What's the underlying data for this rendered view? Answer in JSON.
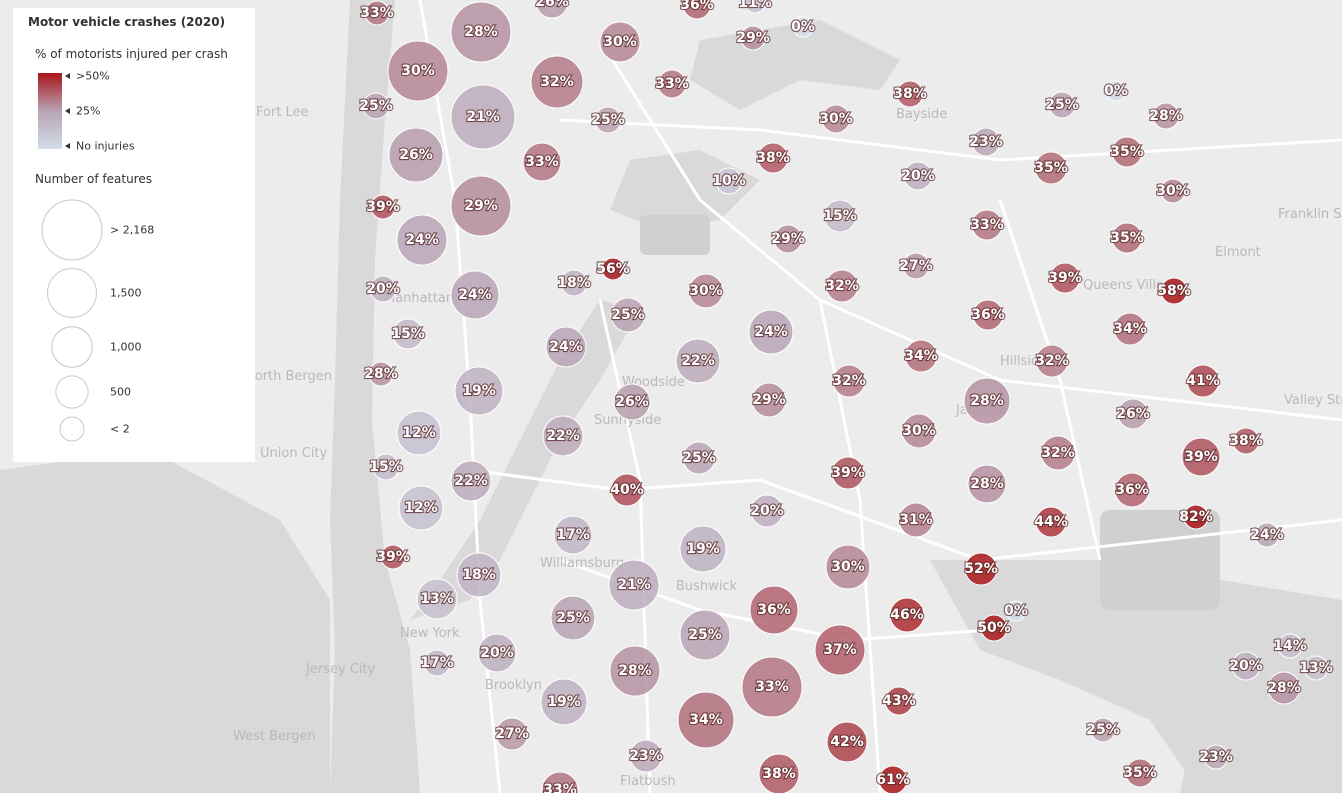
{
  "legend": {
    "title": "Motor vehicle crashes (2020)",
    "color_title": "% of motorists injured per crash",
    "color_stops": [
      "#d3dde9",
      "#b8a3b4",
      "#a8161a"
    ],
    "color_ticks": [
      {
        "value": 50,
        "label": ">50%"
      },
      {
        "value": 25,
        "label": "25%"
      },
      {
        "value": 0,
        "label": "No injuries"
      }
    ],
    "size_title": "Number of features",
    "size_ticks": [
      {
        "value": 2168,
        "label": "> 2,168"
      },
      {
        "value": 1500,
        "label": "1,500"
      },
      {
        "value": 1000,
        "label": "1,000"
      },
      {
        "value": 500,
        "label": "500"
      },
      {
        "value": 2,
        "label": "< 2"
      }
    ]
  },
  "map_labels": [
    "Manhattan",
    "New York",
    "Brooklyn",
    "Jersey City",
    "Union City",
    "Fort Lee",
    "North Bergen",
    "West Bergen",
    "Bayside",
    "Queens Village",
    "Elmont",
    "Jamaica",
    "Woodside",
    "Sunnyside",
    "Bushwick",
    "Williamsburg",
    "Flatbush",
    "Hillside",
    "Franklin Square",
    "Valley Stream"
  ],
  "bubbles": {
    "values": [
      33,
      28,
      26,
      36,
      11,
      0,
      29,
      30,
      30,
      32,
      33,
      25,
      21,
      25,
      38,
      30,
      25,
      0,
      28,
      26,
      33,
      38,
      10,
      20,
      23,
      35,
      35,
      30,
      39,
      29,
      24,
      15,
      33,
      29,
      35,
      56,
      18,
      27,
      39,
      58,
      20,
      24,
      30,
      32,
      25,
      24,
      36,
      34,
      15,
      24,
      22,
      34,
      32,
      28,
      19,
      32,
      41,
      26,
      29,
      28,
      26,
      12,
      22,
      30,
      38,
      15,
      22,
      25,
      39,
      32,
      39,
      40,
      28,
      36,
      12,
      20,
      31,
      44,
      82,
      17,
      19,
      24,
      39,
      18,
      30,
      52,
      21,
      13,
      36,
      46,
      0,
      25,
      25,
      50,
      37,
      20,
      17,
      28,
      14,
      20,
      13,
      33,
      34,
      43,
      28,
      19,
      27,
      42,
      25,
      23,
      23,
      38,
      35,
      61,
      33
    ],
    "value_labels": [
      "33%",
      "28%",
      "26%",
      "36%",
      "11%",
      "0%",
      "29%",
      "30%",
      "30%",
      "32%",
      "33%",
      "25%",
      "21%",
      "25%",
      "38%",
      "30%",
      "25%",
      "0%",
      "28%",
      "26%",
      "33%",
      "38%",
      "10%",
      "20%",
      "23%",
      "35%",
      "35%",
      "30%",
      "39%",
      "29%",
      "24%",
      "15%",
      "33%",
      "29%",
      "35%",
      "56%",
      "18%",
      "27%",
      "39%",
      "58%",
      "20%",
      "24%",
      "30%",
      "32%",
      "25%",
      "24%",
      "36%",
      "34%",
      "15%",
      "24%",
      "22%",
      "34%",
      "32%",
      "28%",
      "19%",
      "32%",
      "41%",
      "26%",
      "29%",
      "28%",
      "26%",
      "12%",
      "22%",
      "30%",
      "38%",
      "15%",
      "22%",
      "25%",
      "39%",
      "32%",
      "39%",
      "40%",
      "28%",
      "36%",
      "12%",
      "20%",
      "31%",
      "44%",
      "82%",
      "17%",
      "19%",
      "24%",
      "39%",
      "18%",
      "30%",
      "52%",
      "21%",
      "13%",
      "36%",
      "46%",
      "0%",
      "25%",
      "25%",
      "50%",
      "37%",
      "20%",
      "17%",
      "28%",
      "14%",
      "20%",
      "13%",
      "33%",
      "34%",
      "43%",
      "28%",
      "19%",
      "27%",
      "42%",
      "25%",
      "23%",
      "23%",
      "38%",
      "35%",
      "61%",
      "33%"
    ]
  }
}
